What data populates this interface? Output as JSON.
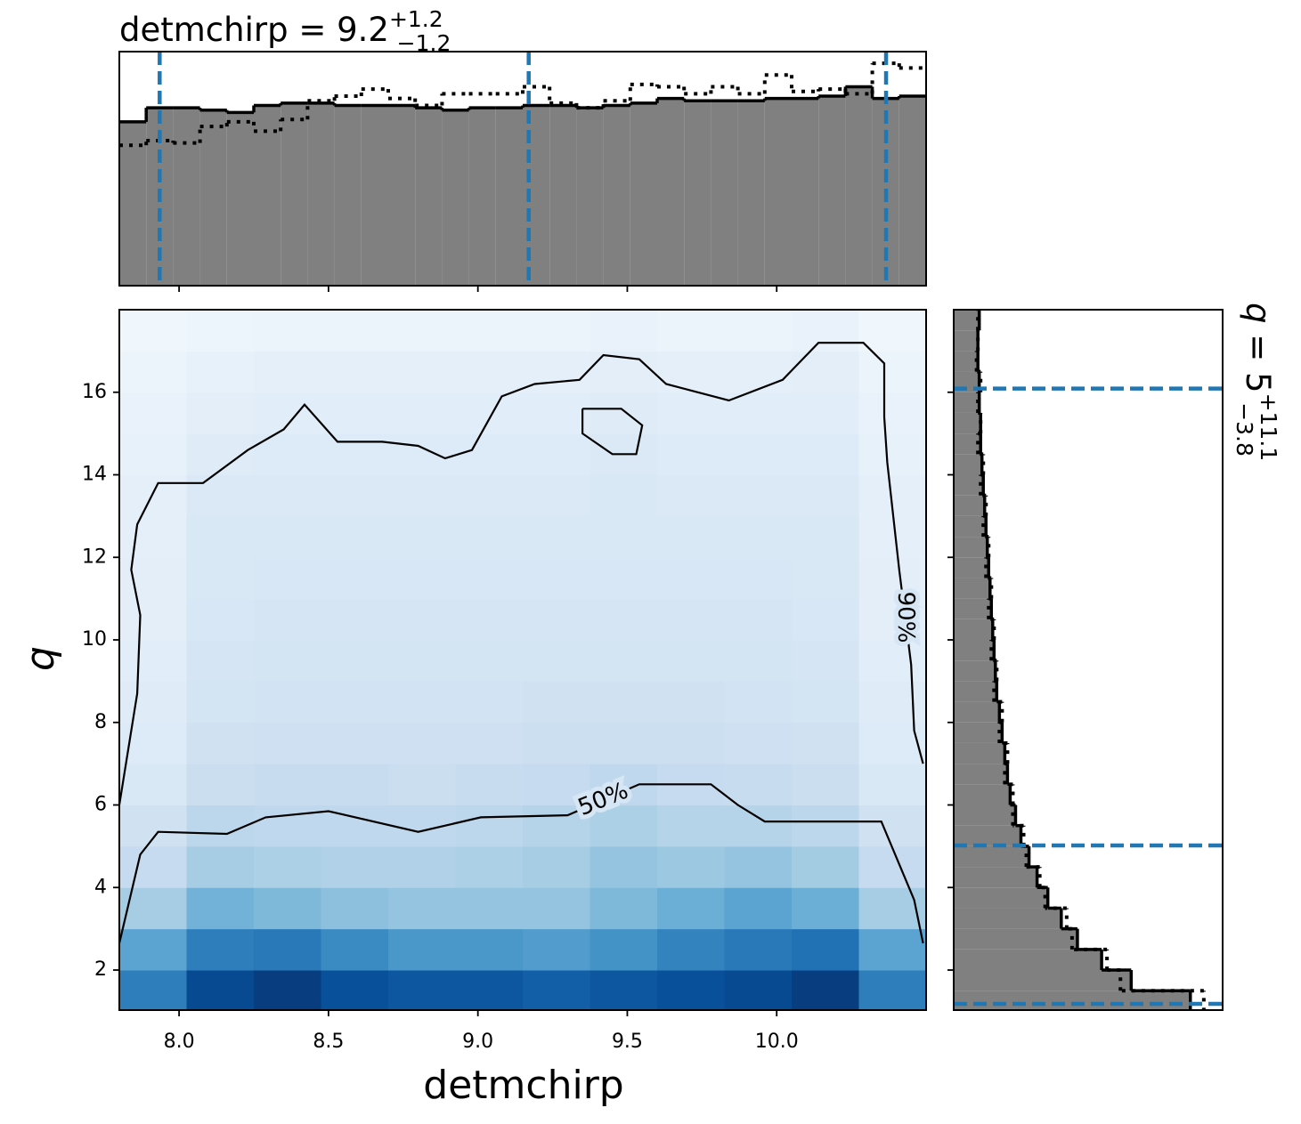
{
  "chart_data": [
    {
      "type": "histogram",
      "orientation": "vertical",
      "title": {
        "text": "detmchirp = 9.2",
        "upper": "+1.2",
        "lower": "−1.2"
      },
      "bins": [
        7.8,
        7.89,
        7.98,
        8.07,
        8.16,
        8.25,
        8.34,
        8.43,
        8.52,
        8.61,
        8.7,
        8.79,
        8.88,
        8.97,
        9.06,
        9.15,
        9.24,
        9.33,
        9.42,
        9.51,
        9.6,
        9.69,
        9.78,
        9.87,
        9.96,
        10.05,
        10.14,
        10.23,
        10.32,
        10.41,
        10.5
      ],
      "series": [
        {
          "style": "solid",
          "color": "#808080",
          "values": [
            0.7,
            0.76,
            0.76,
            0.75,
            0.74,
            0.77,
            0.78,
            0.78,
            0.77,
            0.77,
            0.77,
            0.76,
            0.75,
            0.76,
            0.76,
            0.77,
            0.77,
            0.76,
            0.77,
            0.78,
            0.8,
            0.79,
            0.79,
            0.79,
            0.8,
            0.8,
            0.81,
            0.85,
            0.8,
            0.81
          ]
        },
        {
          "style": "dotted",
          "color": "#000000",
          "values": [
            0.6,
            0.62,
            0.61,
            0.68,
            0.7,
            0.66,
            0.71,
            0.79,
            0.81,
            0.84,
            0.8,
            0.77,
            0.82,
            0.82,
            0.82,
            0.85,
            0.78,
            0.76,
            0.79,
            0.86,
            0.85,
            0.82,
            0.85,
            0.82,
            0.9,
            0.83,
            0.84,
            0.82,
            0.95,
            0.93
          ]
        }
      ],
      "quantiles": [
        7.935,
        9.17,
        10.366
      ],
      "quantile_color": "#1f77b4",
      "xlim": [
        7.8,
        10.5
      ],
      "ylim": [
        0,
        1
      ],
      "xticks": [
        8.0,
        8.5,
        9.0,
        9.5,
        10.0
      ]
    },
    {
      "type": "heatmap",
      "colormap": "Blues",
      "clim": [
        0,
        1
      ],
      "xlabel": "detmchirp",
      "ylabel": "q",
      "xlim": [
        7.8,
        10.5
      ],
      "ylim": [
        1.03,
        18
      ],
      "xticks": [
        {
          "value": 8.0,
          "label": "8.0"
        },
        {
          "value": 8.5,
          "label": "8.5"
        },
        {
          "value": 9.0,
          "label": "9.0"
        },
        {
          "value": 9.5,
          "label": "9.5"
        },
        {
          "value": 10.0,
          "label": "10.0"
        }
      ],
      "yticks": [
        2,
        4,
        6,
        8,
        10,
        12,
        14,
        16
      ],
      "xbins": [
        7.8,
        8.025,
        8.25,
        8.475,
        8.7,
        8.925,
        9.15,
        9.375,
        9.6,
        9.825,
        10.05,
        10.275,
        10.5
      ],
      "ybins": [
        1,
        2,
        3,
        4,
        5,
        6,
        7,
        8,
        9,
        10,
        11,
        12,
        13,
        14,
        15,
        16,
        17,
        18
      ],
      "density": [
        [
          0.7,
          0.9,
          0.95,
          0.88,
          0.85,
          0.85,
          0.82,
          0.85,
          0.88,
          0.9,
          0.95,
          0.7
        ],
        [
          0.55,
          0.7,
          0.72,
          0.65,
          0.6,
          0.6,
          0.58,
          0.62,
          0.68,
          0.72,
          0.75,
          0.55
        ],
        [
          0.35,
          0.48,
          0.45,
          0.42,
          0.4,
          0.4,
          0.4,
          0.45,
          0.5,
          0.55,
          0.5,
          0.35
        ],
        [
          0.25,
          0.35,
          0.33,
          0.32,
          0.32,
          0.33,
          0.35,
          0.4,
          0.38,
          0.4,
          0.36,
          0.25
        ],
        [
          0.2,
          0.28,
          0.27,
          0.27,
          0.27,
          0.28,
          0.3,
          0.33,
          0.3,
          0.3,
          0.28,
          0.2
        ],
        [
          0.15,
          0.23,
          0.24,
          0.24,
          0.23,
          0.24,
          0.25,
          0.27,
          0.25,
          0.24,
          0.23,
          0.15
        ],
        [
          0.13,
          0.2,
          0.21,
          0.21,
          0.21,
          0.21,
          0.22,
          0.22,
          0.22,
          0.21,
          0.2,
          0.13
        ],
        [
          0.12,
          0.18,
          0.19,
          0.19,
          0.19,
          0.19,
          0.2,
          0.2,
          0.2,
          0.19,
          0.18,
          0.12
        ],
        [
          0.11,
          0.17,
          0.18,
          0.18,
          0.18,
          0.18,
          0.18,
          0.18,
          0.18,
          0.18,
          0.17,
          0.11
        ],
        [
          0.1,
          0.16,
          0.17,
          0.17,
          0.17,
          0.17,
          0.17,
          0.17,
          0.17,
          0.17,
          0.16,
          0.1
        ],
        [
          0.1,
          0.15,
          0.16,
          0.16,
          0.16,
          0.16,
          0.16,
          0.16,
          0.16,
          0.16,
          0.15,
          0.1
        ],
        [
          0.09,
          0.15,
          0.15,
          0.15,
          0.15,
          0.15,
          0.15,
          0.15,
          0.15,
          0.15,
          0.15,
          0.09
        ],
        [
          0.09,
          0.14,
          0.14,
          0.14,
          0.14,
          0.14,
          0.14,
          0.15,
          0.14,
          0.14,
          0.14,
          0.09
        ],
        [
          0.08,
          0.12,
          0.13,
          0.13,
          0.13,
          0.13,
          0.13,
          0.14,
          0.13,
          0.13,
          0.13,
          0.08
        ],
        [
          0.07,
          0.1,
          0.11,
          0.11,
          0.11,
          0.11,
          0.11,
          0.12,
          0.11,
          0.11,
          0.11,
          0.07
        ],
        [
          0.06,
          0.08,
          0.09,
          0.09,
          0.09,
          0.09,
          0.09,
          0.1,
          0.09,
          0.09,
          0.1,
          0.06
        ],
        [
          0.04,
          0.05,
          0.06,
          0.06,
          0.06,
          0.06,
          0.06,
          0.07,
          0.06,
          0.06,
          0.07,
          0.04
        ]
      ],
      "contours": [
        {
          "label": "50%",
          "x": [
            7.8,
            7.87,
            7.93,
            8.16,
            8.29,
            8.5,
            8.8,
            9.01,
            9.3,
            9.54,
            9.78,
            9.87,
            9.96,
            10.35,
            10.46,
            10.49
          ],
          "y": [
            2.65,
            4.8,
            5.35,
            5.3,
            5.7,
            5.85,
            5.35,
            5.7,
            5.75,
            6.5,
            6.5,
            6.0,
            5.6,
            5.6,
            3.7,
            2.65
          ]
        },
        {
          "label": "90%",
          "x": [
            7.8,
            7.86,
            7.87,
            7.84,
            7.86,
            7.93,
            8.08,
            8.23,
            8.35,
            8.42,
            8.53,
            8.68,
            8.8,
            8.89,
            8.98,
            9.08,
            9.19,
            9.34,
            9.42,
            9.54,
            9.63,
            9.84,
            10.02,
            10.14,
            10.29,
            10.36,
            10.36,
            10.37,
            10.41,
            10.45,
            10.46,
            10.49
          ],
          "y": [
            6.0,
            8.7,
            10.6,
            11.7,
            12.8,
            13.8,
            13.8,
            14.6,
            15.1,
            15.7,
            14.8,
            14.8,
            14.7,
            14.4,
            14.6,
            15.9,
            16.2,
            16.3,
            16.9,
            16.8,
            16.2,
            15.8,
            16.3,
            17.2,
            17.2,
            16.7,
            15.4,
            14.3,
            11.7,
            9.4,
            7.8,
            7.0
          ]
        },
        {
          "x": [
            9.35,
            9.48,
            9.55,
            9.53,
            9.45,
            9.35,
            9.35
          ],
          "y": [
            15.6,
            15.6,
            15.2,
            14.5,
            14.5,
            15.0,
            15.6
          ]
        }
      ]
    },
    {
      "type": "histogram",
      "orientation": "horizontal",
      "title": {
        "symbol": "q",
        "text": " = 5",
        "upper": "+11.1",
        "lower": "−3.8"
      },
      "bins": [
        1,
        1.5,
        2,
        2.5,
        3,
        3.5,
        4,
        4.5,
        5,
        5.5,
        6,
        6.5,
        7,
        7.5,
        8,
        8.5,
        9,
        9.5,
        10,
        10.5,
        11,
        11.5,
        12,
        12.5,
        13,
        13.5,
        14,
        14.5,
        15,
        15.5,
        16,
        16.5,
        17,
        17.5,
        18
      ],
      "series": [
        {
          "style": "solid",
          "color": "#808080",
          "values": [
            0.88,
            0.66,
            0.55,
            0.46,
            0.4,
            0.35,
            0.31,
            0.28,
            0.25,
            0.23,
            0.21,
            0.2,
            0.19,
            0.18,
            0.17,
            0.16,
            0.155,
            0.15,
            0.145,
            0.14,
            0.135,
            0.13,
            0.125,
            0.12,
            0.115,
            0.11,
            0.105,
            0.1,
            0.1,
            0.095,
            0.095,
            0.09,
            0.09,
            0.095
          ]
        },
        {
          "style": "dotted",
          "color": "#000000",
          "values": [
            0.93,
            0.62,
            0.57,
            0.44,
            0.42,
            0.34,
            0.32,
            0.27,
            0.26,
            0.22,
            0.22,
            0.19,
            0.2,
            0.17,
            0.18,
            0.15,
            0.16,
            0.14,
            0.15,
            0.13,
            0.14,
            0.12,
            0.13,
            0.11,
            0.12,
            0.1,
            0.11,
            0.09,
            0.1,
            0.09,
            0.1,
            0.085,
            0.09,
            0.09
          ]
        }
      ],
      "quantiles": [
        16.09,
        5.02,
        1.18
      ],
      "quantile_color": "#1f77b4",
      "xlim": [
        0,
        1
      ],
      "ylim": [
        1.03,
        18
      ],
      "yticks": [
        2,
        4,
        6,
        8,
        10,
        12,
        14,
        16
      ]
    }
  ]
}
